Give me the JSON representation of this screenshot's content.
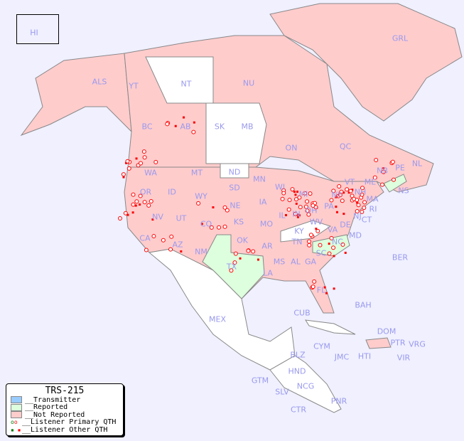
{
  "legend": {
    "title": "TRS-215",
    "items": [
      {
        "label": "__Transmitter",
        "color": "#99ccff"
      },
      {
        "label": "__Reported",
        "color": "#ddffdd"
      },
      {
        "label": "__Not Reported",
        "color": "#ffcccc"
      },
      {
        "label": "__Listener Primary QTH",
        "color": "#ff0000"
      },
      {
        "label": "__Listener Other QTH",
        "color": "#ff0000"
      }
    ]
  },
  "colors": {
    "background": "#f0f0ff",
    "not_reported": "#ffcccc",
    "reported": "#ddffdd",
    "no_data": "#ffffff",
    "label": "#9999ee",
    "dot": "#ff0000"
  },
  "regions": {
    "reported": [
      "TX",
      "NC",
      "NS"
    ],
    "no_data": [
      "NT",
      "SK",
      "MB",
      "ND",
      "KY",
      "MEX"
    ]
  },
  "labels": [
    "HI",
    "ALS",
    "YT",
    "NT",
    "NU",
    "GRL",
    "BC",
    "AB",
    "SK",
    "MB",
    "ON",
    "QC",
    "NL",
    "NB",
    "PE",
    "NS",
    "WA",
    "OR",
    "ID",
    "MT",
    "WY",
    "ND",
    "SD",
    "NE",
    "MN",
    "WI",
    "IA",
    "IL",
    "IN",
    "MI",
    "OH",
    "PA",
    "NY",
    "VT",
    "NH",
    "ME",
    "MA",
    "CT",
    "RI",
    "NJ",
    "DE",
    "MD",
    "WV",
    "VA",
    "KY",
    "TN",
    "NC",
    "SC",
    "GA",
    "AL",
    "MS",
    "LA",
    "AR",
    "MO",
    "KS",
    "OK",
    "TX",
    "NM",
    "AZ",
    "UT",
    "NV",
    "CA",
    "CO",
    "FL",
    "BER",
    "BAH",
    "CUB",
    "DOM",
    "PTR",
    "VRG",
    "VIR",
    "CYM",
    "JMC",
    "HTI",
    "BLZ",
    "HND",
    "GTM",
    "SLV",
    "NCG",
    "CTR",
    "PNR",
    "MEX"
  ]
}
